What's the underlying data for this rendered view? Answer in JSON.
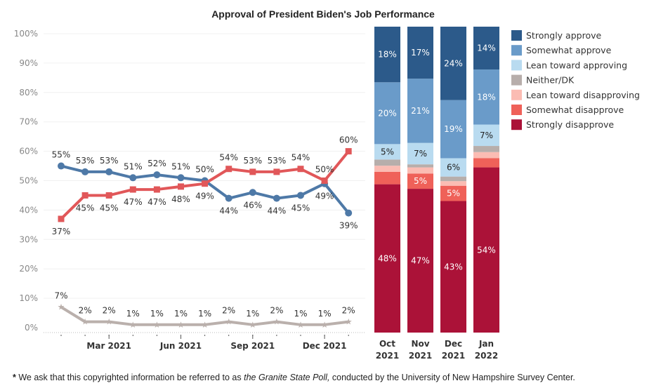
{
  "footnote": {
    "star": "*",
    "pre": " We ask that this copyrighted information be referred to as ",
    "italic": "the Granite State Poll,",
    "post": " conducted by the University of New Hampshire Survey Center."
  },
  "chart_data": [
    {
      "type": "line",
      "title": "Approval of President Biden's Job Performance",
      "x": [
        "Jan 2021",
        "Feb 2021",
        "Mar 2021",
        "Apr 2021",
        "May 2021",
        "Jun 2021",
        "Jul 2021",
        "Aug 2021",
        "Sep 2021",
        "Oct 2021",
        "Nov 2021",
        "Dec 2021",
        "Jan 2022"
      ],
      "x_tick_labels": [
        "Mar 2021",
        "Jun 2021",
        "Sep 2021",
        "Dec 2021"
      ],
      "x_tick_positions": [
        "Mar 2021",
        "Jun 2021",
        "Sep 2021",
        "Dec 2021"
      ],
      "y_tick_labels": [
        "0%",
        "10%",
        "20%",
        "30%",
        "40%",
        "50%",
        "60%",
        "70%",
        "80%",
        "90%",
        "100%"
      ],
      "ylim": [
        0,
        100
      ],
      "grid": true,
      "series": [
        {
          "key": "approve",
          "color": "#4e79a7",
          "marker": "circle",
          "values": [
            55,
            53,
            53,
            51,
            52,
            51,
            50,
            44,
            46,
            44,
            45,
            49,
            39
          ]
        },
        {
          "key": "disapprove",
          "color": "#e15759",
          "marker": "square",
          "values": [
            37,
            45,
            45,
            47,
            47,
            48,
            49,
            54,
            53,
            53,
            54,
            50,
            60
          ]
        },
        {
          "key": "neither",
          "color": "#bab0ac",
          "marker": "star",
          "values": [
            7,
            2,
            2,
            1,
            1,
            1,
            1,
            2,
            1,
            2,
            1,
            1,
            2
          ]
        }
      ]
    },
    {
      "type": "bar",
      "stacked": true,
      "categories": [
        [
          "Oct",
          "2021"
        ],
        [
          "Nov",
          "2021"
        ],
        [
          "Dec",
          "2021"
        ],
        [
          "Jan",
          "2022"
        ]
      ],
      "legend_position": "right",
      "series": [
        {
          "name": "Strongly disapprove",
          "color": "#ab1238",
          "label_color": "#ffffff",
          "values": [
            48,
            47,
            43,
            54
          ]
        },
        {
          "name": "Somewhat disapprove",
          "color": "#ef6159",
          "label_color": "#ffffff",
          "values": [
            4,
            5,
            5,
            3
          ]
        },
        {
          "name": "Lean toward disapproving",
          "color": "#fbbcb3",
          "label_color": "#333333",
          "values": [
            2,
            2,
            1.5,
            2
          ]
        },
        {
          "name": "Neither/DK",
          "color": "#b7aeab",
          "label_color": "#333333",
          "values": [
            2,
            1,
            1.5,
            2
          ]
        },
        {
          "name": "Lean toward approving",
          "color": "#b9dbf0",
          "label_color": "#222222",
          "values": [
            5,
            7,
            6,
            7
          ]
        },
        {
          "name": "Somewhat approve",
          "color": "#6a9bc9",
          "label_color": "#ffffff",
          "values": [
            20,
            21,
            19,
            18
          ]
        },
        {
          "name": "Strongly approve",
          "color": "#2c5a8a",
          "label_color": "#ffffff",
          "values": [
            18,
            17,
            24,
            14
          ]
        }
      ],
      "legend_order": [
        "Strongly approve",
        "Somewhat approve",
        "Lean toward approving",
        "Neither/DK",
        "Lean toward disapproving",
        "Somewhat disapprove",
        "Strongly disapprove"
      ]
    }
  ]
}
